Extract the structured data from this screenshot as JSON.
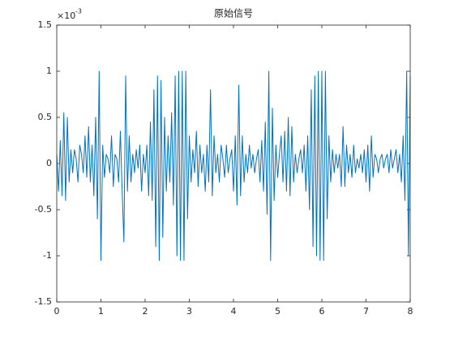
{
  "chart_data": {
    "type": "line",
    "title": "原始信号",
    "y_multiplier": {
      "base": "×10",
      "exponent": "-3"
    },
    "xlim": [
      0,
      8
    ],
    "xticks": [
      0,
      1,
      2,
      3,
      4,
      5,
      6,
      7,
      8
    ],
    "ylim": [
      -1.5,
      1.5
    ],
    "yticks": [
      -1.5,
      -1,
      -0.5,
      0,
      0.5,
      1,
      1.5
    ],
    "grid": false,
    "x": [
      0,
      0.04,
      0.08,
      0.12,
      0.16,
      0.2,
      0.24,
      0.28,
      0.32,
      0.36,
      0.4,
      0.44,
      0.48,
      0.52,
      0.56,
      0.6,
      0.64,
      0.68,
      0.72,
      0.76,
      0.8,
      0.84,
      0.88,
      0.92,
      0.96,
      1,
      1.04,
      1.08,
      1.12,
      1.16,
      1.2,
      1.24,
      1.28,
      1.32,
      1.36,
      1.4,
      1.44,
      1.48,
      1.52,
      1.56,
      1.6,
      1.64,
      1.68,
      1.72,
      1.76,
      1.8,
      1.84,
      1.88,
      1.92,
      1.96,
      2,
      2.04,
      2.08,
      2.12,
      2.16,
      2.2,
      2.24,
      2.28,
      2.32,
      2.36,
      2.4,
      2.44,
      2.48,
      2.52,
      2.56,
      2.6,
      2.64,
      2.68,
      2.72,
      2.76,
      2.8,
      2.84,
      2.88,
      2.92,
      2.96,
      3,
      3.04,
      3.08,
      3.12,
      3.16,
      3.2,
      3.24,
      3.28,
      3.32,
      3.36,
      3.4,
      3.44,
      3.48,
      3.52,
      3.56,
      3.6,
      3.64,
      3.68,
      3.72,
      3.76,
      3.8,
      3.84,
      3.88,
      3.92,
      3.96,
      4,
      4.04,
      4.08,
      4.12,
      4.16,
      4.2,
      4.24,
      4.28,
      4.32,
      4.36,
      4.4,
      4.44,
      4.48,
      4.52,
      4.56,
      4.6,
      4.64,
      4.68,
      4.72,
      4.76,
      4.8,
      4.84,
      4.88,
      4.92,
      4.96,
      5,
      5.04,
      5.08,
      5.12,
      5.16,
      5.2,
      5.24,
      5.28,
      5.32,
      5.36,
      5.4,
      5.44,
      5.48,
      5.52,
      5.56,
      5.6,
      5.64,
      5.68,
      5.72,
      5.76,
      5.8,
      5.84,
      5.88,
      5.92,
      5.96,
      6,
      6.04,
      6.08,
      6.12,
      6.16,
      6.2,
      6.24,
      6.28,
      6.32,
      6.36,
      6.4,
      6.44,
      6.48,
      6.52,
      6.56,
      6.6,
      6.64,
      6.68,
      6.72,
      6.76,
      6.8,
      6.84,
      6.88,
      6.92,
      6.96,
      7,
      7.04,
      7.08,
      7.12,
      7.16,
      7.2,
      7.24,
      7.28,
      7.32,
      7.36,
      7.4,
      7.44,
      7.48,
      7.52,
      7.56,
      7.6,
      7.64,
      7.68,
      7.72,
      7.76,
      7.8,
      7.84,
      7.88,
      7.92,
      7.96,
      8
    ],
    "series": [
      {
        "color": "#0072bd",
        "values": [
          0.1,
          -0.3,
          0.25,
          -0.35,
          0.55,
          -0.4,
          0.5,
          -0.2,
          0.15,
          -0.1,
          0.15,
          0.05,
          -0.2,
          0.2,
          0.1,
          -0.1,
          0.3,
          -0.15,
          0.4,
          -0.2,
          0.2,
          -0.35,
          0.5,
          -0.6,
          1.0,
          -1.05,
          0.2,
          -0.15,
          0.1,
          0.05,
          -0.1,
          0.3,
          -0.25,
          0.1,
          0.05,
          -0.2,
          0.35,
          -0.3,
          -0.85,
          0.95,
          -0.3,
          0.3,
          -0.2,
          0.1,
          -0.1,
          0.15,
          -0.05,
          0.2,
          -0.3,
          0.1,
          -0.1,
          0.2,
          -0.35,
          0.45,
          -0.4,
          0.8,
          -0.9,
          0.95,
          -1.05,
          0.9,
          -0.8,
          0.5,
          -0.3,
          0.3,
          -0.2,
          0.55,
          -0.45,
          0.95,
          -1.0,
          1.0,
          -1.05,
          1.0,
          -1.05,
          1.0,
          -0.6,
          0.3,
          -0.2,
          0.15,
          -0.1,
          0.35,
          -0.25,
          0.2,
          -0.1,
          0.1,
          -0.3,
          0.2,
          -0.2,
          0.8,
          -0.35,
          0.3,
          -0.1,
          0.1,
          -0.2,
          0.2,
          0.05,
          -0.15,
          0.2,
          -0.1,
          0.05,
          0.15,
          -0.3,
          0.3,
          -0.45,
          0.85,
          -0.35,
          0.3,
          -0.2,
          0.1,
          -0.1,
          0.2,
          -0.05,
          0.1,
          -0.1,
          0.05,
          0.15,
          -0.2,
          0.25,
          -0.3,
          0.45,
          -0.55,
          1.0,
          -1.05,
          0.6,
          -0.4,
          0.2,
          -0.15,
          0.1,
          0.3,
          -0.2,
          0.35,
          -0.3,
          0.5,
          -0.35,
          0.4,
          -0.2,
          0.1,
          -0.1,
          0.05,
          0.15,
          -0.1,
          0.2,
          -0.3,
          0.3,
          -0.5,
          0.8,
          -0.9,
          0.95,
          -1.0,
          1.0,
          -1.05,
          1.0,
          -1.05,
          1.0,
          -0.6,
          0.3,
          -0.2,
          0.15,
          -0.1,
          0.1,
          -0.05,
          0.1,
          -0.25,
          0.4,
          -0.25,
          0.2,
          -0.1,
          0.1,
          -0.15,
          0.2,
          -0.1,
          0.05,
          -0.05,
          0.1,
          -0.1,
          0.15,
          -0.2,
          0.2,
          -0.3,
          0.3,
          -0.15,
          0.1,
          0.05,
          -0.1,
          0.05,
          0.1,
          -0.05,
          0.05,
          0.1,
          -0.1,
          0.15,
          -0.05,
          0.05,
          0.15,
          -0.1,
          0.1,
          -0.2,
          0.3,
          -0.4,
          1.0,
          -1.0,
          0.95
        ]
      }
    ]
  }
}
